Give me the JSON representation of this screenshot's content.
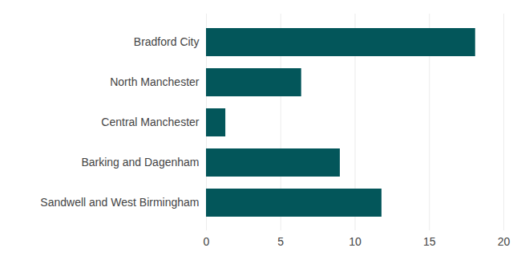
{
  "chart_data": {
    "type": "bar",
    "orientation": "horizontal",
    "categories": [
      "Bradford City",
      "North Manchester",
      "Central Manchester",
      "Barking and Dagenham",
      "Sandwell and West Birmingham"
    ],
    "values": [
      18.1,
      6.4,
      1.3,
      9.0,
      11.8
    ],
    "color": "#03565a",
    "xlim": [
      0,
      20
    ],
    "xticks": [
      0,
      5,
      10,
      15,
      20
    ],
    "grid": true
  }
}
